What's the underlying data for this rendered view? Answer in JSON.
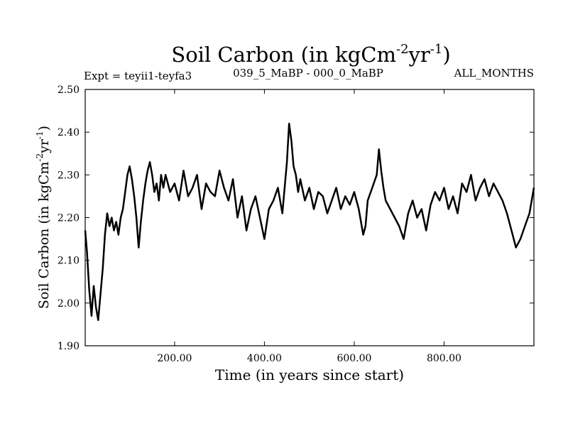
{
  "chart_data": {
    "type": "line",
    "title": {
      "main": "Soil Carbon (in kgCm",
      "sup1": "-2",
      "mid": "yr",
      "sup2": "-1",
      "end": ")"
    },
    "subtitle_left": "Expt = teyii1-teyfa3",
    "subtitle_center": "039_5_MaBP - 000_0_MaBP",
    "subtitle_right": "ALL_MONTHS",
    "xlabel": "Time (in years since start)",
    "ylabel": {
      "main": "Soil Carbon (in kgCm",
      "sup1": "-2",
      "mid": "yr",
      "sup2": "-1",
      "end": ")"
    },
    "xlim": [
      1,
      1000
    ],
    "ylim": [
      1.9,
      2.5
    ],
    "x_ticks": [
      200,
      400,
      600,
      800
    ],
    "x_tick_labels": [
      "200.00",
      "400.00",
      "600.00",
      "800.00"
    ],
    "y_ticks": [
      1.9,
      2.0,
      2.1,
      2.2,
      2.3,
      2.4,
      2.5
    ],
    "y_tick_labels": [
      "1.90",
      "2.00",
      "2.10",
      "2.20",
      "2.30",
      "2.40",
      "2.50"
    ],
    "grid": false,
    "series": [
      {
        "name": "Soil Carbon",
        "line_color": "#000000",
        "x": [
          1,
          5,
          10,
          15,
          20,
          25,
          30,
          35,
          40,
          45,
          50,
          55,
          60,
          65,
          70,
          75,
          80,
          85,
          90,
          95,
          100,
          105,
          110,
          115,
          120,
          125,
          130,
          135,
          140,
          145,
          150,
          155,
          160,
          165,
          170,
          175,
          180,
          190,
          200,
          210,
          220,
          230,
          240,
          250,
          260,
          270,
          280,
          290,
          300,
          310,
          320,
          330,
          340,
          350,
          360,
          370,
          380,
          390,
          400,
          410,
          420,
          430,
          440,
          450,
          455,
          460,
          465,
          470,
          475,
          480,
          490,
          500,
          510,
          520,
          530,
          540,
          550,
          560,
          570,
          580,
          590,
          600,
          610,
          620,
          625,
          630,
          640,
          650,
          655,
          660,
          665,
          670,
          680,
          690,
          700,
          710,
          720,
          730,
          740,
          750,
          760,
          770,
          780,
          790,
          800,
          810,
          820,
          830,
          840,
          850,
          860,
          870,
          880,
          890,
          900,
          910,
          920,
          930,
          940,
          950,
          960,
          970,
          980,
          990,
          1000
        ],
        "values": [
          2.17,
          2.12,
          2.03,
          1.97,
          2.04,
          1.99,
          1.96,
          2.02,
          2.08,
          2.16,
          2.21,
          2.18,
          2.2,
          2.17,
          2.19,
          2.16,
          2.2,
          2.22,
          2.26,
          2.3,
          2.32,
          2.29,
          2.25,
          2.2,
          2.13,
          2.19,
          2.24,
          2.28,
          2.31,
          2.33,
          2.3,
          2.26,
          2.28,
          2.24,
          2.3,
          2.27,
          2.3,
          2.26,
          2.28,
          2.24,
          2.31,
          2.25,
          2.27,
          2.3,
          2.22,
          2.28,
          2.26,
          2.25,
          2.31,
          2.27,
          2.24,
          2.29,
          2.2,
          2.25,
          2.17,
          2.22,
          2.25,
          2.2,
          2.15,
          2.22,
          2.24,
          2.27,
          2.21,
          2.33,
          2.42,
          2.38,
          2.32,
          2.3,
          2.26,
          2.29,
          2.24,
          2.27,
          2.22,
          2.26,
          2.25,
          2.21,
          2.24,
          2.27,
          2.22,
          2.25,
          2.23,
          2.26,
          2.22,
          2.16,
          2.18,
          2.24,
          2.27,
          2.3,
          2.36,
          2.31,
          2.27,
          2.24,
          2.22,
          2.2,
          2.18,
          2.15,
          2.21,
          2.24,
          2.2,
          2.22,
          2.17,
          2.23,
          2.26,
          2.24,
          2.27,
          2.22,
          2.25,
          2.21,
          2.28,
          2.26,
          2.3,
          2.24,
          2.27,
          2.29,
          2.25,
          2.28,
          2.26,
          2.24,
          2.21,
          2.17,
          2.13,
          2.15,
          2.18,
          2.21,
          2.27
        ]
      }
    ]
  }
}
